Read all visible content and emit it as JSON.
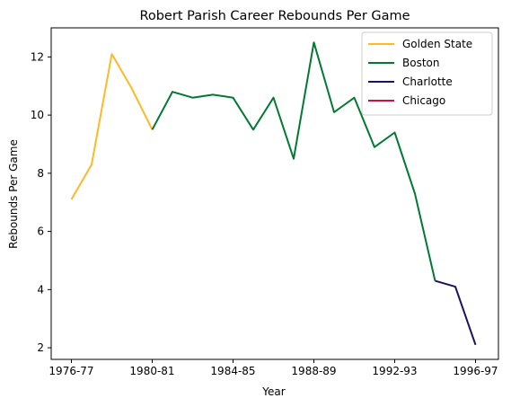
{
  "chart_data": {
    "type": "line",
    "title": "Robert Parish Career Rebounds Per Game",
    "xlabel": "Year",
    "ylabel": "Rebounds Per Game",
    "x_ticks": [
      "1976-77",
      "1980-81",
      "1984-85",
      "1988-89",
      "1992-93",
      "1996-97"
    ],
    "y_ticks": [
      2,
      4,
      6,
      8,
      10,
      12
    ],
    "ylim": [
      1.6,
      13.0
    ],
    "grid": false,
    "legend_position": "top-right",
    "seasons": [
      "1976-77",
      "1977-78",
      "1978-79",
      "1979-80",
      "1980-81",
      "1981-82",
      "1982-83",
      "1983-84",
      "1984-85",
      "1985-86",
      "1986-87",
      "1987-88",
      "1988-89",
      "1989-90",
      "1990-91",
      "1991-92",
      "1992-93",
      "1993-94",
      "1994-95",
      "1995-96",
      "1996-97"
    ],
    "series": [
      {
        "name": "Golden State",
        "color": "#FDB927",
        "x": [
          "1976-77",
          "1977-78",
          "1978-79",
          "1979-80",
          "1980-81"
        ],
        "values": [
          7.1,
          8.3,
          12.1,
          10.9,
          9.5
        ]
      },
      {
        "name": "Boston",
        "color": "#007A33",
        "x": [
          "1980-81",
          "1981-82",
          "1982-83",
          "1983-84",
          "1984-85",
          "1985-86",
          "1986-87",
          "1987-88",
          "1988-89",
          "1989-90",
          "1990-91",
          "1991-92",
          "1992-93",
          "1993-94",
          "1994-95"
        ],
        "values": [
          9.5,
          10.8,
          10.6,
          10.7,
          10.6,
          9.5,
          10.6,
          8.5,
          12.5,
          10.1,
          10.6,
          8.9,
          9.4,
          7.3,
          4.3
        ]
      },
      {
        "name": "Charlotte",
        "color": "#1D1160",
        "x": [
          "1994-95",
          "1995-96",
          "1996-97"
        ],
        "values": [
          4.3,
          4.1,
          2.1
        ]
      },
      {
        "name": "Chicago",
        "color": "#CE1141",
        "x": [
          "1996-97"
        ],
        "values": [
          2.1
        ]
      }
    ]
  }
}
